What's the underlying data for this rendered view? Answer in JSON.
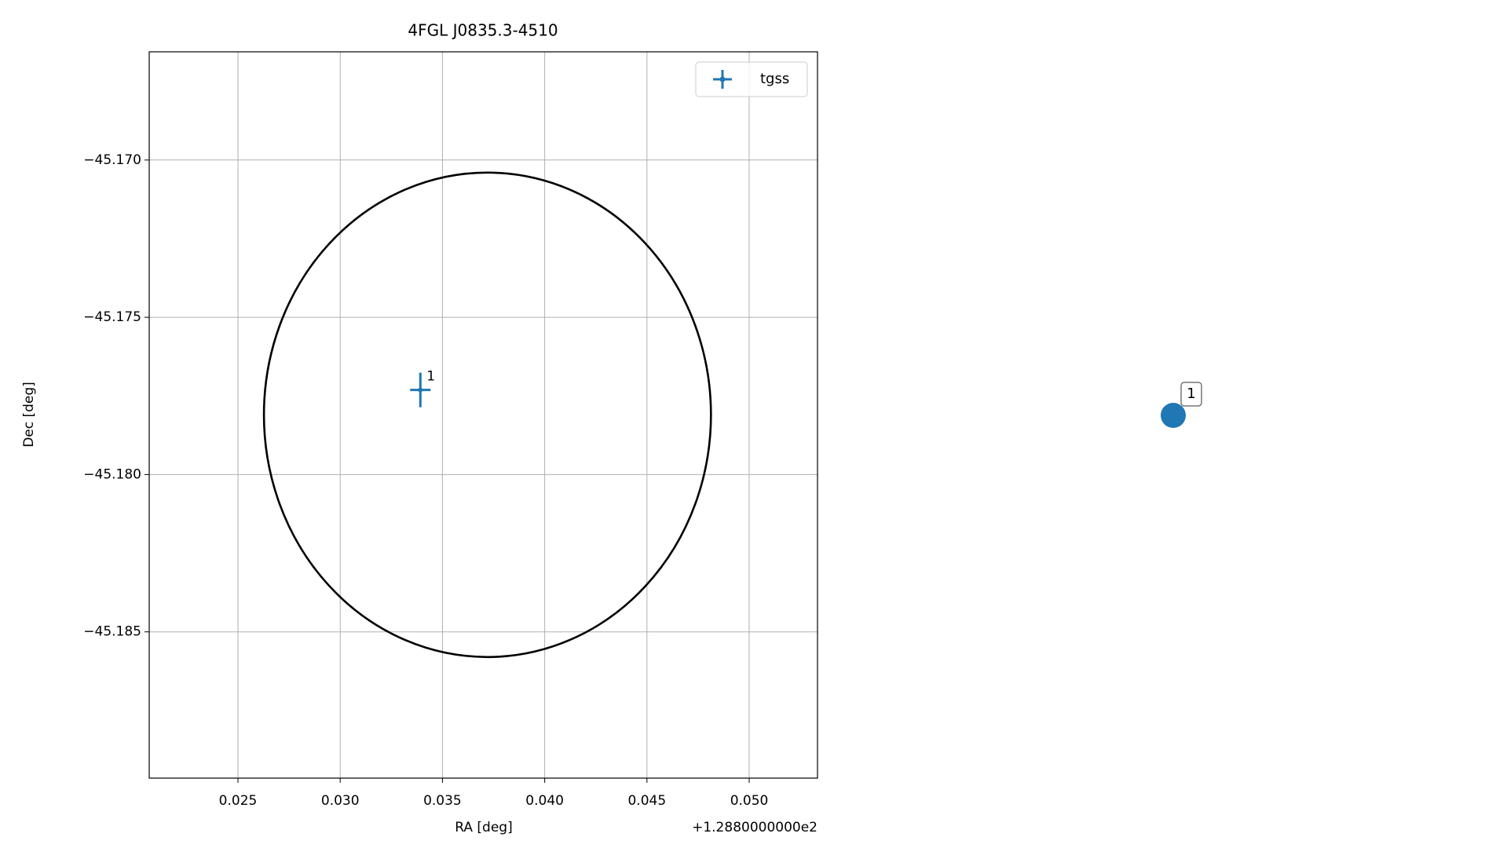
{
  "chart_data": [
    {
      "type": "errorbar",
      "title": "4FGL J0835.3-4510",
      "xlabel": "RA [deg]",
      "ylabel": "Dec [deg]",
      "x_offset_label": "+1.2880000000e2",
      "xlim": [
        0.02066,
        0.05334
      ],
      "ylim": [
        -45.18965,
        -45.16656
      ],
      "xticks": [
        0.025,
        {
          "value": 0.03,
          "label": "0.030"
        },
        0.035,
        {
          "value": 0.04,
          "label": "0.040"
        },
        0.045,
        {
          "value": 0.05,
          "label": "0.050"
        }
      ],
      "yticks": [
        {
          "value": -45.17,
          "label": "−45.170"
        },
        {
          "value": -45.175,
          "label": "−45.175"
        },
        {
          "value": -45.18,
          "label": "−45.180"
        },
        {
          "value": -45.185,
          "label": "−45.185"
        }
      ],
      "grid": true,
      "legend": "upper right",
      "series": [
        {
          "name": "tgss",
          "color": "#1f77b4",
          "x": [
            0.03392
          ],
          "values": [
            -45.17731
          ],
          "xerr": [
            0.0005
          ],
          "yerr": [
            0.00055
          ],
          "labels": [
            "1"
          ]
        }
      ],
      "ellipse": {
        "x": 0.0372,
        "y": -45.1781,
        "rx": 0.01093,
        "ry": 0.0077,
        "color": "#000000"
      }
    },
    {
      "type": "marker",
      "labels": [
        "1"
      ],
      "color": "#1f77b4"
    }
  ]
}
